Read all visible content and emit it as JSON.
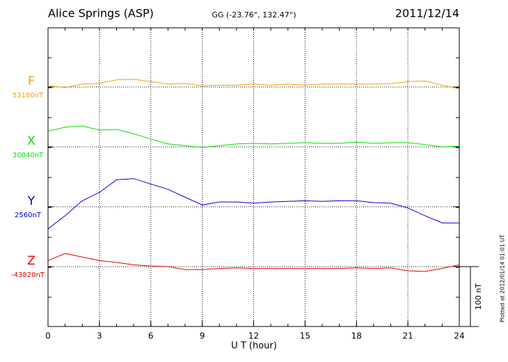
{
  "chart_data": {
    "type": "line",
    "title": "Alice Springs (ASP)",
    "subtitle": "GG (-23.76°, 132.47°)",
    "date": "2011/12/14",
    "xlabel": "U T (hour)",
    "footnote": "Plotted at 2012/01/14 01:01 UT",
    "xlim": [
      0,
      24
    ],
    "xticks": [
      0,
      3,
      6,
      9,
      12,
      15,
      18,
      21,
      24
    ],
    "grid": true,
    "scale_bar": {
      "value": 100,
      "label": "100 nT"
    },
    "x": [
      0,
      1,
      2,
      3,
      4,
      5,
      6,
      7,
      8,
      9,
      10,
      11,
      12,
      13,
      14,
      15,
      16,
      17,
      18,
      19,
      20,
      21,
      22,
      23,
      24
    ],
    "series": [
      {
        "name": "F",
        "color": "#f0a000",
        "baseline": {
          "value": 53180,
          "label": "53180nT"
        },
        "values": [
          53182,
          53179,
          53185,
          53186,
          53192,
          53193,
          53189,
          53185,
          53186,
          53182,
          53183,
          53183,
          53185,
          53183,
          53185,
          53183,
          53185,
          53185,
          53185,
          53185,
          53186,
          53189,
          53190,
          53183,
          53177
        ]
      },
      {
        "name": "X",
        "color": "#00dd00",
        "baseline": {
          "value": 30040,
          "label": "30040nT"
        },
        "values": [
          30066,
          30073,
          30075,
          30068,
          30069,
          30062,
          30053,
          30045,
          30042,
          30039,
          30042,
          30045,
          30046,
          30045,
          30046,
          30047,
          30046,
          30046,
          30048,
          30046,
          30047,
          30047,
          30044,
          30040,
          30041
        ]
      },
      {
        "name": "Y",
        "color": "#0000cc",
        "baseline": {
          "value": 2560,
          "label": "2560nT"
        },
        "values": [
          2523,
          2545,
          2570,
          2584,
          2605,
          2607,
          2598,
          2589,
          2576,
          2563,
          2568,
          2568,
          2566,
          2568,
          2569,
          2570,
          2569,
          2570,
          2570,
          2567,
          2566,
          2558,
          2545,
          2533,
          2533
        ]
      },
      {
        "name": "Z",
        "color": "#e00000",
        "baseline": {
          "value": -43820,
          "label": "-43820nT"
        },
        "values": [
          -43810,
          -43798,
          -43804,
          -43810,
          -43813,
          -43817,
          -43819,
          -43820,
          -43825,
          -43825,
          -43823,
          -43822,
          -43823,
          -43823,
          -43823,
          -43823,
          -43823,
          -43823,
          -43822,
          -43823,
          -43822,
          -43827,
          -43828,
          -43823,
          -43817
        ]
      }
    ]
  }
}
